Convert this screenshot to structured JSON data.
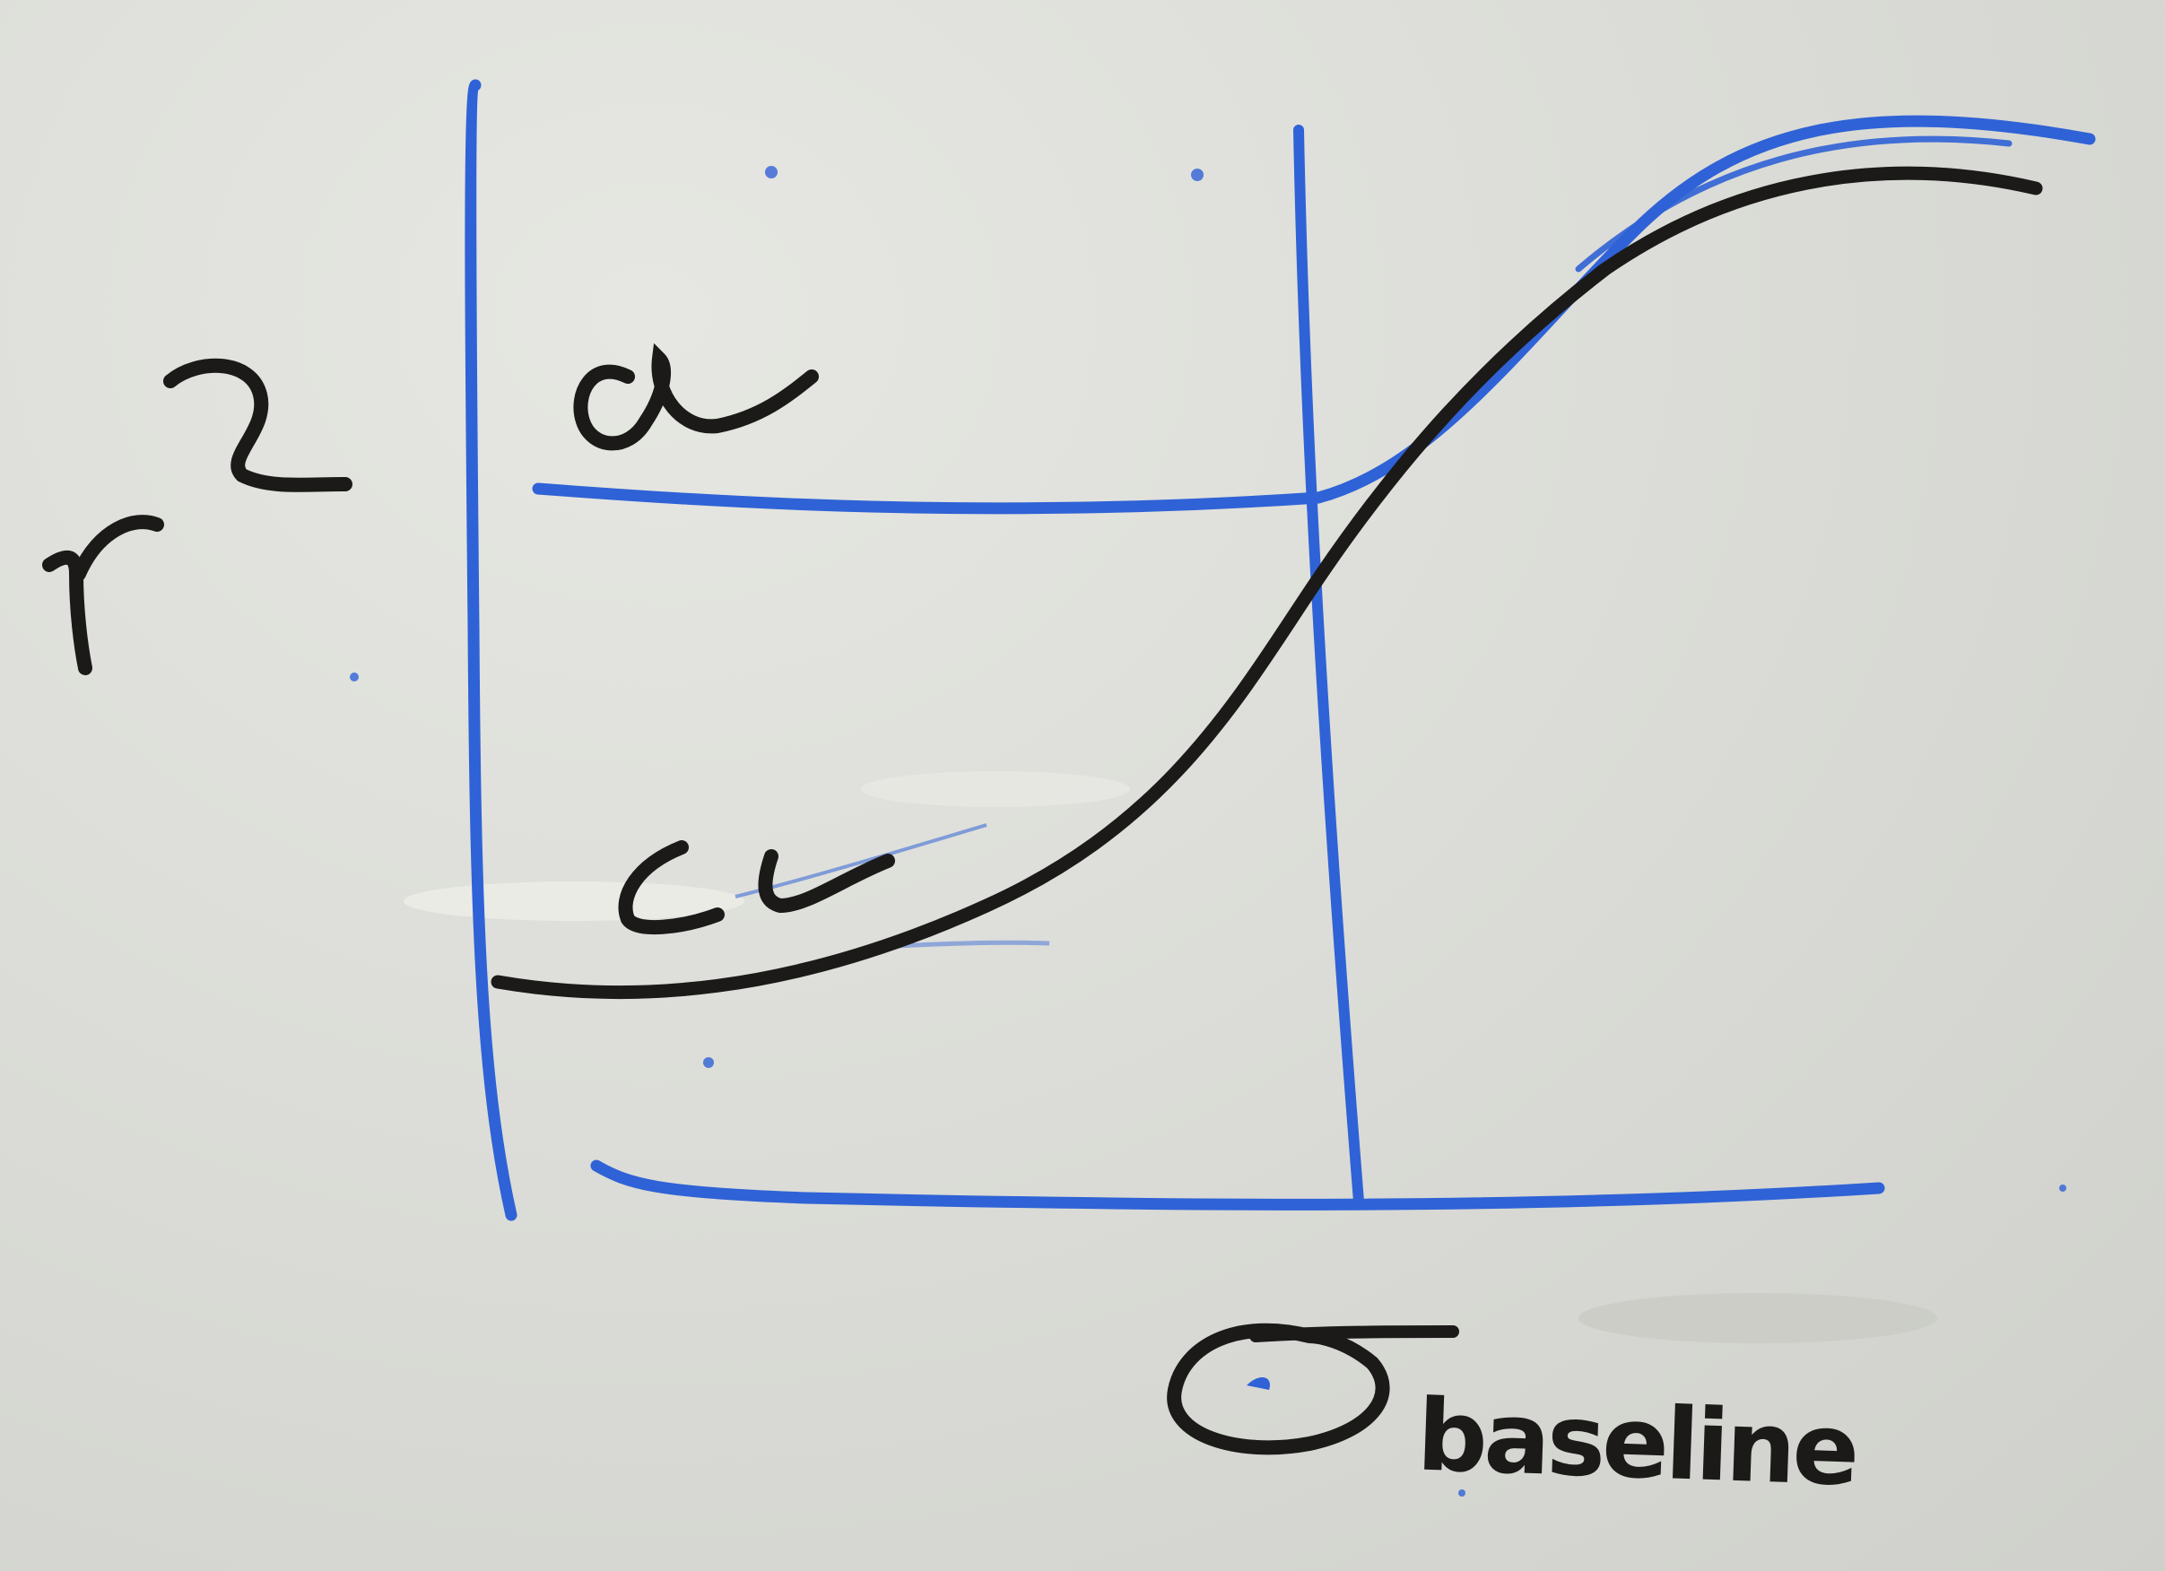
{
  "whiteboard": {
    "y_axis_label": "r",
    "y_axis_superscript": "2",
    "upper_line_label": "α",
    "lower_curve_label": "c",
    "circle_label": "baseline"
  },
  "colors": {
    "board": "#dcddd8",
    "blue_marker": "#2f62d6",
    "black_marker": "#1b1a19"
  }
}
